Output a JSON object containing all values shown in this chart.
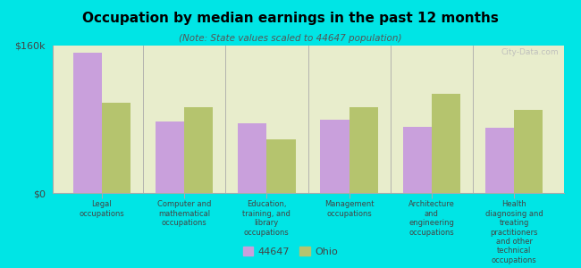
{
  "title": "Occupation by median earnings in the past 12 months",
  "subtitle": "(Note: State values scaled to 44647 population)",
  "background_color": "#00e5e5",
  "plot_bg_color": "#e8edcc",
  "categories": [
    "Legal\noccupations",
    "Computer and\nmathematical\noccupations",
    "Education,\ntraining, and\nlibrary\noccupations",
    "Management\noccupations",
    "Architecture\nand\nengineering\noccupations",
    "Health\ndiagnosing and\ntreating\npractitioners\nand other\ntechnical\noccupations"
  ],
  "values_44647": [
    152000,
    78000,
    76000,
    80000,
    72000,
    71000
  ],
  "values_ohio": [
    98000,
    93000,
    58000,
    93000,
    108000,
    90000
  ],
  "bar_color_44647": "#c9a0dc",
  "bar_color_ohio": "#b5c46e",
  "ylim": [
    0,
    160000
  ],
  "ytick_labels": [
    "$0",
    "$160k"
  ],
  "legend_label_44647": "44647",
  "legend_label_ohio": "Ohio",
  "bar_width": 0.35,
  "watermark": "City-Data.com"
}
